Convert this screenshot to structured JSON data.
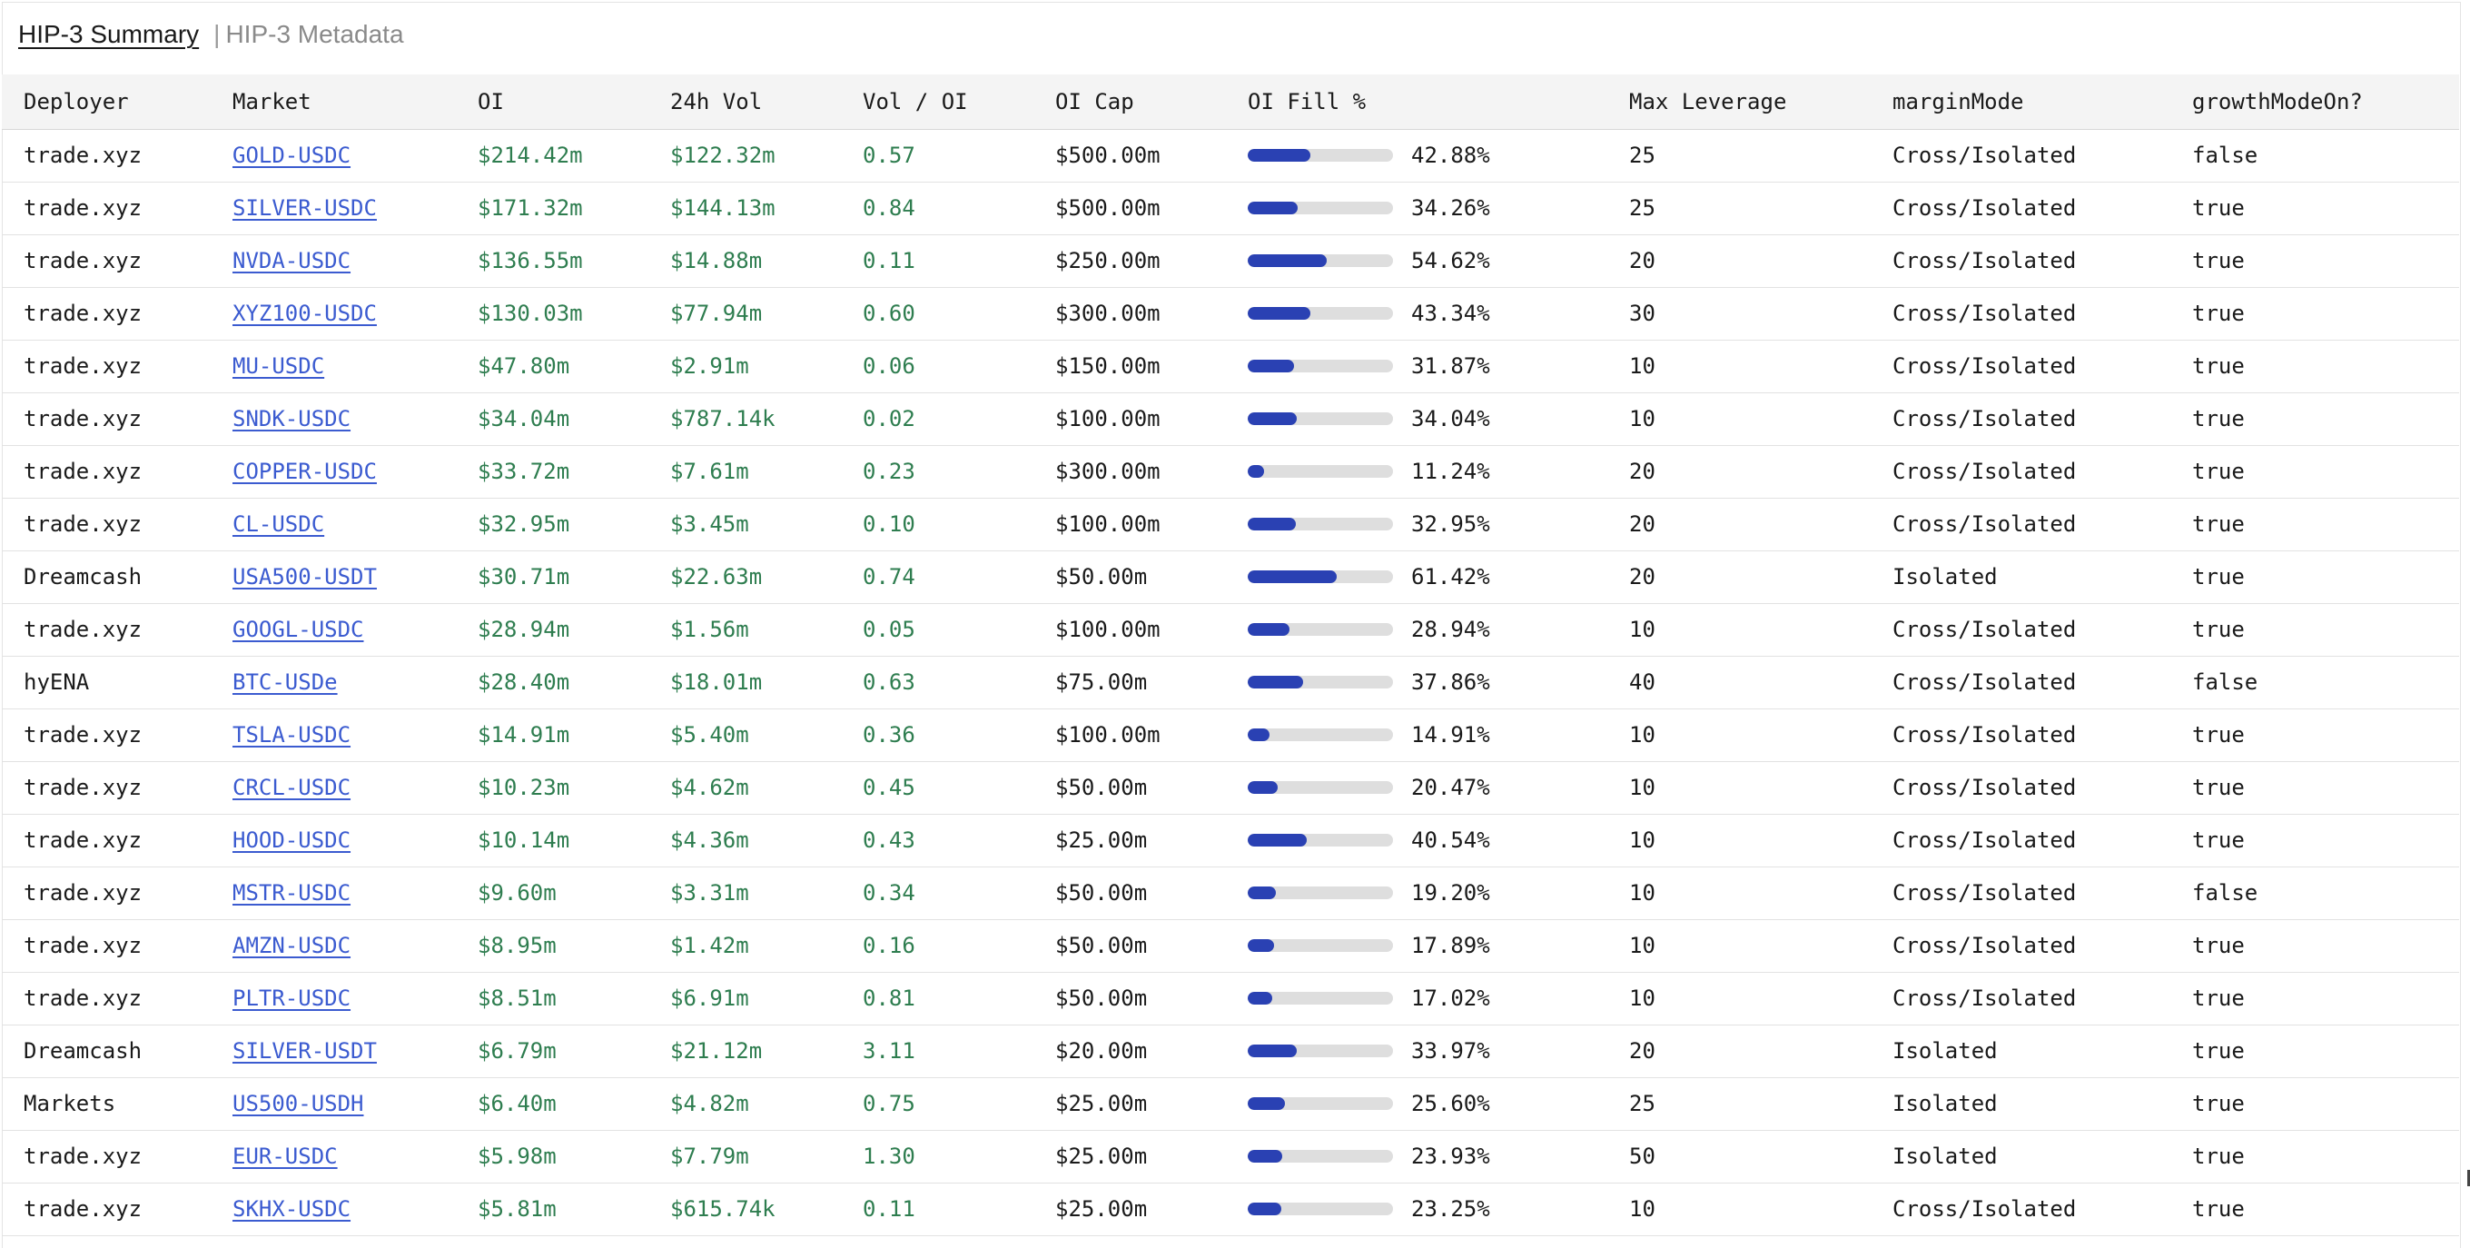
{
  "tabs": {
    "summary": "HIP-3 Summary",
    "separator": "|",
    "metadata": "HIP-3 Metadata"
  },
  "columns": [
    "Deployer",
    "Market",
    "OI",
    "24h Vol",
    "Vol / OI",
    "OI Cap",
    "OI Fill %",
    "Max Leverage",
    "marginMode",
    "growthModeOn?"
  ],
  "colors": {
    "green_value": "#2e7d4f",
    "link": "#3b5bd0",
    "bar_fill": "#2a41b3",
    "bar_track": "#dedede"
  },
  "rows": [
    {
      "deployer": "trade.xyz",
      "market": "GOLD-USDC",
      "oi": "$214.42m",
      "vol": "$122.32m",
      "vol_oi": "0.57",
      "oi_cap": "$500.00m",
      "fill_pct": "42.88%",
      "fill": 0.4288,
      "max_lev": "25",
      "margin": "Cross/Isolated",
      "growth": "false"
    },
    {
      "deployer": "trade.xyz",
      "market": "SILVER-USDC",
      "oi": "$171.32m",
      "vol": "$144.13m",
      "vol_oi": "0.84",
      "oi_cap": "$500.00m",
      "fill_pct": "34.26%",
      "fill": 0.3426,
      "max_lev": "25",
      "margin": "Cross/Isolated",
      "growth": "true"
    },
    {
      "deployer": "trade.xyz",
      "market": "NVDA-USDC",
      "oi": "$136.55m",
      "vol": "$14.88m",
      "vol_oi": "0.11",
      "oi_cap": "$250.00m",
      "fill_pct": "54.62%",
      "fill": 0.5462,
      "max_lev": "20",
      "margin": "Cross/Isolated",
      "growth": "true"
    },
    {
      "deployer": "trade.xyz",
      "market": "XYZ100-USDC",
      "oi": "$130.03m",
      "vol": "$77.94m",
      "vol_oi": "0.60",
      "oi_cap": "$300.00m",
      "fill_pct": "43.34%",
      "fill": 0.4334,
      "max_lev": "30",
      "margin": "Cross/Isolated",
      "growth": "true"
    },
    {
      "deployer": "trade.xyz",
      "market": "MU-USDC",
      "oi": "$47.80m",
      "vol": "$2.91m",
      "vol_oi": "0.06",
      "oi_cap": "$150.00m",
      "fill_pct": "31.87%",
      "fill": 0.3187,
      "max_lev": "10",
      "margin": "Cross/Isolated",
      "growth": "true"
    },
    {
      "deployer": "trade.xyz",
      "market": "SNDK-USDC",
      "oi": "$34.04m",
      "vol": "$787.14k",
      "vol_oi": "0.02",
      "oi_cap": "$100.00m",
      "fill_pct": "34.04%",
      "fill": 0.3404,
      "max_lev": "10",
      "margin": "Cross/Isolated",
      "growth": "true"
    },
    {
      "deployer": "trade.xyz",
      "market": "COPPER-USDC",
      "oi": "$33.72m",
      "vol": "$7.61m",
      "vol_oi": "0.23",
      "oi_cap": "$300.00m",
      "fill_pct": "11.24%",
      "fill": 0.1124,
      "max_lev": "20",
      "margin": "Cross/Isolated",
      "growth": "true"
    },
    {
      "deployer": "trade.xyz",
      "market": "CL-USDC",
      "oi": "$32.95m",
      "vol": "$3.45m",
      "vol_oi": "0.10",
      "oi_cap": "$100.00m",
      "fill_pct": "32.95%",
      "fill": 0.3295,
      "max_lev": "20",
      "margin": "Cross/Isolated",
      "growth": "true"
    },
    {
      "deployer": "Dreamcash",
      "market": "USA500-USDT",
      "oi": "$30.71m",
      "vol": "$22.63m",
      "vol_oi": "0.74",
      "oi_cap": "$50.00m",
      "fill_pct": "61.42%",
      "fill": 0.6142,
      "max_lev": "20",
      "margin": "Isolated",
      "growth": "true"
    },
    {
      "deployer": "trade.xyz",
      "market": "GOOGL-USDC",
      "oi": "$28.94m",
      "vol": "$1.56m",
      "vol_oi": "0.05",
      "oi_cap": "$100.00m",
      "fill_pct": "28.94%",
      "fill": 0.2894,
      "max_lev": "10",
      "margin": "Cross/Isolated",
      "growth": "true"
    },
    {
      "deployer": "hyENA",
      "market": "BTC-USDe",
      "oi": "$28.40m",
      "vol": "$18.01m",
      "vol_oi": "0.63",
      "oi_cap": "$75.00m",
      "fill_pct": "37.86%",
      "fill": 0.3786,
      "max_lev": "40",
      "margin": "Cross/Isolated",
      "growth": "false"
    },
    {
      "deployer": "trade.xyz",
      "market": "TSLA-USDC",
      "oi": "$14.91m",
      "vol": "$5.40m",
      "vol_oi": "0.36",
      "oi_cap": "$100.00m",
      "fill_pct": "14.91%",
      "fill": 0.1491,
      "max_lev": "10",
      "margin": "Cross/Isolated",
      "growth": "true"
    },
    {
      "deployer": "trade.xyz",
      "market": "CRCL-USDC",
      "oi": "$10.23m",
      "vol": "$4.62m",
      "vol_oi": "0.45",
      "oi_cap": "$50.00m",
      "fill_pct": "20.47%",
      "fill": 0.2047,
      "max_lev": "10",
      "margin": "Cross/Isolated",
      "growth": "true"
    },
    {
      "deployer": "trade.xyz",
      "market": "HOOD-USDC",
      "oi": "$10.14m",
      "vol": "$4.36m",
      "vol_oi": "0.43",
      "oi_cap": "$25.00m",
      "fill_pct": "40.54%",
      "fill": 0.4054,
      "max_lev": "10",
      "margin": "Cross/Isolated",
      "growth": "true"
    },
    {
      "deployer": "trade.xyz",
      "market": "MSTR-USDC",
      "oi": "$9.60m",
      "vol": "$3.31m",
      "vol_oi": "0.34",
      "oi_cap": "$50.00m",
      "fill_pct": "19.20%",
      "fill": 0.192,
      "max_lev": "10",
      "margin": "Cross/Isolated",
      "growth": "false"
    },
    {
      "deployer": "trade.xyz",
      "market": "AMZN-USDC",
      "oi": "$8.95m",
      "vol": "$1.42m",
      "vol_oi": "0.16",
      "oi_cap": "$50.00m",
      "fill_pct": "17.89%",
      "fill": 0.1789,
      "max_lev": "10",
      "margin": "Cross/Isolated",
      "growth": "true"
    },
    {
      "deployer": "trade.xyz",
      "market": "PLTR-USDC",
      "oi": "$8.51m",
      "vol": "$6.91m",
      "vol_oi": "0.81",
      "oi_cap": "$50.00m",
      "fill_pct": "17.02%",
      "fill": 0.1702,
      "max_lev": "10",
      "margin": "Cross/Isolated",
      "growth": "true"
    },
    {
      "deployer": "Dreamcash",
      "market": "SILVER-USDT",
      "oi": "$6.79m",
      "vol": "$21.12m",
      "vol_oi": "3.11",
      "oi_cap": "$20.00m",
      "fill_pct": "33.97%",
      "fill": 0.3397,
      "max_lev": "20",
      "margin": "Isolated",
      "growth": "true"
    },
    {
      "deployer": "Markets",
      "market": "US500-USDH",
      "oi": "$6.40m",
      "vol": "$4.82m",
      "vol_oi": "0.75",
      "oi_cap": "$25.00m",
      "fill_pct": "25.60%",
      "fill": 0.256,
      "max_lev": "25",
      "margin": "Isolated",
      "growth": "true"
    },
    {
      "deployer": "trade.xyz",
      "market": "EUR-USDC",
      "oi": "$5.98m",
      "vol": "$7.79m",
      "vol_oi": "1.30",
      "oi_cap": "$25.00m",
      "fill_pct": "23.93%",
      "fill": 0.2393,
      "max_lev": "50",
      "margin": "Isolated",
      "growth": "true"
    },
    {
      "deployer": "trade.xyz",
      "market": "SKHX-USDC",
      "oi": "$5.81m",
      "vol": "$615.74k",
      "vol_oi": "0.11",
      "oi_cap": "$25.00m",
      "fill_pct": "23.25%",
      "fill": 0.2325,
      "max_lev": "10",
      "margin": "Cross/Isolated",
      "growth": "true"
    }
  ]
}
